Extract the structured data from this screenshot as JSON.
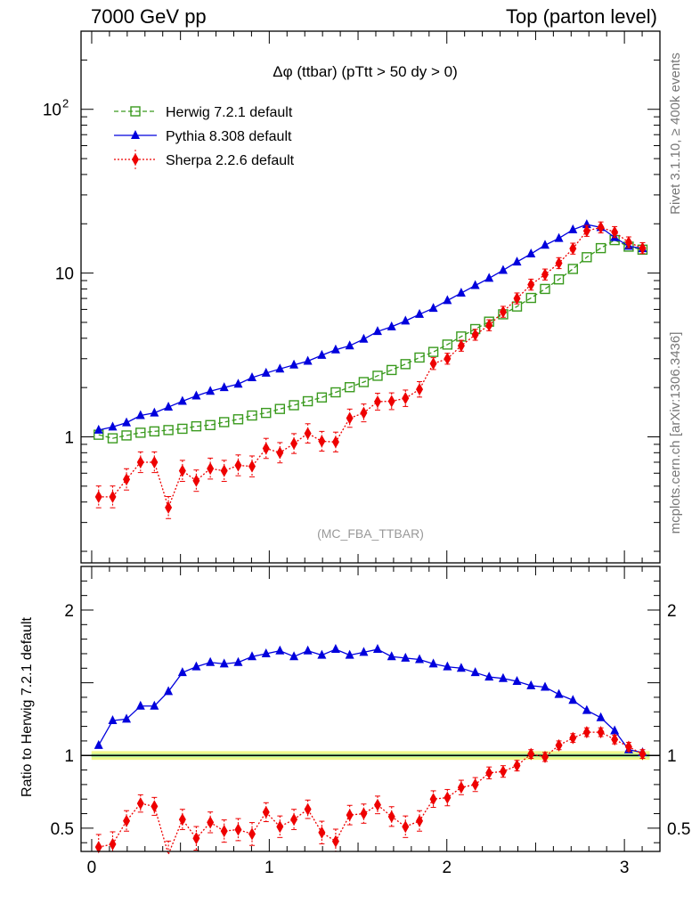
{
  "header": {
    "left": "7000 GeV pp",
    "right": "Top (parton level)"
  },
  "side_labels": {
    "rivet": "Rivet 3.1.10, ≥ 400k events",
    "mcplots": "mcplots.cern.ch [arXiv:1306.3436]"
  },
  "chart_data": [
    {
      "type": "line",
      "title": "Δφ (ttbar) (pTtt > 50 dy > 0)",
      "annotation": "(MC_FBA_TTBAR)",
      "y_scale": "log",
      "ylim": [
        0.17,
        300
      ],
      "xlim": [
        -0.06,
        3.2
      ],
      "y_ticks": [
        {
          "value": 1,
          "label": "1"
        },
        {
          "value": 10,
          "label": "10"
        },
        {
          "value": 100,
          "label": "10",
          "sup": "2"
        }
      ],
      "legend_position": "top-left",
      "colors": {
        "herwig": "#3a9a1e",
        "pythia": "#0000dd",
        "sherpa": "#ee0000"
      },
      "x": [
        0.039,
        0.118,
        0.196,
        0.275,
        0.353,
        0.432,
        0.511,
        0.589,
        0.668,
        0.746,
        0.825,
        0.903,
        0.982,
        1.06,
        1.139,
        1.217,
        1.296,
        1.374,
        1.453,
        1.532,
        1.61,
        1.689,
        1.767,
        1.846,
        1.924,
        2.003,
        2.081,
        2.16,
        2.238,
        2.317,
        2.395,
        2.474,
        2.553,
        2.631,
        2.71,
        2.788,
        2.867,
        2.945,
        3.024,
        3.102
      ],
      "series": [
        {
          "name": "Herwig 7.2.1 default",
          "marker": "open-square",
          "line": "dashed",
          "values": [
            1.03,
            0.98,
            1.02,
            1.06,
            1.08,
            1.1,
            1.12,
            1.16,
            1.18,
            1.23,
            1.28,
            1.35,
            1.4,
            1.48,
            1.56,
            1.65,
            1.74,
            1.87,
            2.01,
            2.16,
            2.36,
            2.56,
            2.78,
            3.05,
            3.3,
            3.66,
            4.1,
            4.55,
            5.05,
            5.6,
            6.25,
            7.05,
            8.0,
            9.15,
            10.6,
            12.5,
            14.2,
            15.9,
            14.5,
            13.9
          ]
        },
        {
          "name": "Pythia 8.308 default",
          "marker": "filled-triangle",
          "line": "solid",
          "values": [
            1.1,
            1.15,
            1.22,
            1.35,
            1.4,
            1.52,
            1.65,
            1.78,
            1.9,
            2.0,
            2.1,
            2.3,
            2.45,
            2.6,
            2.75,
            2.9,
            3.15,
            3.4,
            3.6,
            3.95,
            4.4,
            4.7,
            5.1,
            5.6,
            6.1,
            6.8,
            7.55,
            8.4,
            9.3,
            10.4,
            11.7,
            13.1,
            14.8,
            16.3,
            18.4,
            19.8,
            19.0,
            16.5,
            14.6,
            14.1
          ]
        },
        {
          "name": "Sherpa 2.2.6 default",
          "marker": "filled-diamond",
          "line": "dotted",
          "values": [
            0.43,
            0.43,
            0.55,
            0.7,
            0.7,
            0.37,
            0.62,
            0.54,
            0.64,
            0.62,
            0.67,
            0.66,
            0.85,
            0.8,
            0.91,
            1.05,
            0.94,
            0.93,
            1.3,
            1.4,
            1.64,
            1.65,
            1.72,
            1.95,
            2.8,
            3.0,
            3.6,
            4.2,
            4.8,
            5.8,
            7.0,
            8.5,
            9.8,
            11.5,
            14.1,
            18.1,
            19.0,
            17.8,
            15.4,
            14.2
          ]
        }
      ]
    },
    {
      "type": "line",
      "ylabel": "Ratio to Herwig 7.2.1 default",
      "ylim": [
        0.34,
        2.3
      ],
      "xlim": [
        -0.06,
        3.2
      ],
      "y_ticks": [
        0.5,
        1,
        2
      ],
      "y_tick_labels": [
        "0.5",
        "1",
        "2"
      ],
      "x_ticks": [
        0,
        1,
        2,
        3
      ],
      "x_tick_labels": [
        "0",
        "1",
        "2",
        "3"
      ],
      "reference": {
        "name": "Herwig 7.2.1 default",
        "value": 1.0
      },
      "series": [
        {
          "name": "Pythia 8.308 default",
          "values": [
            1.07,
            1.24,
            1.25,
            1.34,
            1.34,
            1.44,
            1.57,
            1.61,
            1.64,
            1.63,
            1.64,
            1.68,
            1.7,
            1.72,
            1.68,
            1.72,
            1.69,
            1.73,
            1.69,
            1.71,
            1.73,
            1.68,
            1.67,
            1.66,
            1.63,
            1.61,
            1.6,
            1.57,
            1.54,
            1.53,
            1.51,
            1.48,
            1.47,
            1.42,
            1.38,
            1.31,
            1.26,
            1.17,
            1.04,
            1.02
          ]
        },
        {
          "name": "Sherpa 2.2.6 default",
          "values": [
            0.37,
            0.39,
            0.55,
            0.67,
            0.65,
            0.32,
            0.56,
            0.43,
            0.54,
            0.48,
            0.49,
            0.46,
            0.61,
            0.51,
            0.56,
            0.63,
            0.47,
            0.41,
            0.59,
            0.6,
            0.66,
            0.58,
            0.51,
            0.55,
            0.7,
            0.71,
            0.78,
            0.8,
            0.88,
            0.89,
            0.93,
            1.01,
            0.99,
            1.07,
            1.12,
            1.16,
            1.16,
            1.11,
            1.06,
            1.01
          ]
        }
      ]
    }
  ]
}
